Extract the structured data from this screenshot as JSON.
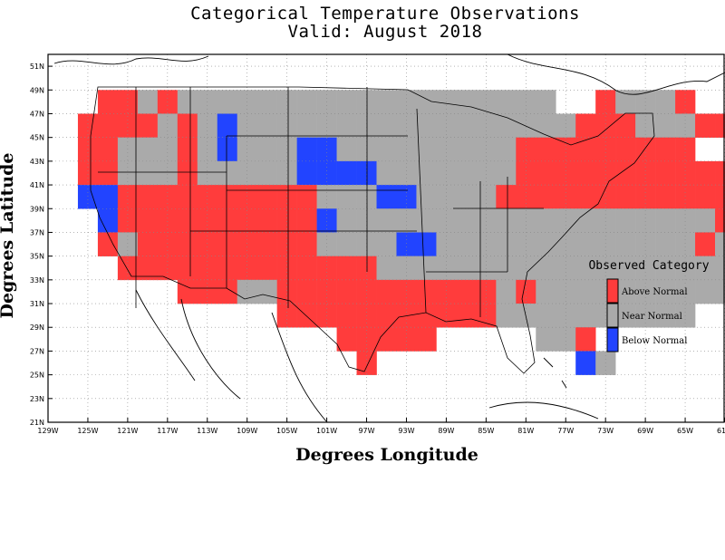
{
  "title": {
    "line1": "Categorical Temperature Observations",
    "line2": "Valid: August 2018"
  },
  "axes": {
    "xlabel": "Degrees Longitude",
    "ylabel": "Degrees Latitude",
    "x_ticks": [
      "129W",
      "125W",
      "121W",
      "117W",
      "113W",
      "109W",
      "105W",
      "101W",
      "97W",
      "93W",
      "89W",
      "85W",
      "81W",
      "77W",
      "73W",
      "69W",
      "65W",
      "61W"
    ],
    "y_ticks": [
      "21N",
      "23N",
      "25N",
      "27N",
      "29N",
      "31N",
      "33N",
      "35N",
      "37N",
      "39N",
      "41N",
      "43N",
      "45N",
      "47N",
      "49N",
      "51N"
    ],
    "xlim": [
      -129,
      -61
    ],
    "ylim": [
      21,
      52
    ],
    "grid": true
  },
  "legend": {
    "title": "Observed Category",
    "placement": "right",
    "items": [
      {
        "label": "Above Normal",
        "color": "#ff3c3c"
      },
      {
        "label": "Near Normal",
        "color": "#aaaaaa"
      },
      {
        "label": "Below Normal",
        "color": "#2244ff"
      }
    ]
  },
  "chart_data": {
    "type": "heatmap",
    "cell_size_degrees": 2,
    "categories": [
      "Above Normal",
      "Near Normal",
      "Below Normal"
    ],
    "rows": [
      {
        "lat": 48,
        "lon_start": -124,
        "cells": "AANANNNNNNNNNNNNNNNNNNN..ANNNA"
      },
      {
        "lat": 46,
        "lon_start": -126,
        "cells": "AAAANANBNNNNNNNNNNNNNNNNNAAANNNAAN........AA"
      },
      {
        "lat": 44,
        "lon_start": -126,
        "cells": "AANNNANBNNNBBNNNNNNNNNAAAAAAAAA...AAAAAAAAAA"
      },
      {
        "lat": 42,
        "lon_start": -126,
        "cells": "AANNNANNNNNBBBBNNNNNNNAAAAAAAAAAAAAAAAAAAAA"
      },
      {
        "lat": 40,
        "lon_start": -126,
        "cells": "BBAAAAAAAAAANNNBBNNNNAAAAAAAAAAAAAAAAAAAAA"
      },
      {
        "lat": 38,
        "lon_start": -124,
        "cells": "BAAAAAAAAAABNNNNNNNNNNNNNNNNNNNAAAAAA"
      },
      {
        "lat": 36,
        "lon_start": -124,
        "cells": "ANAAAAAAAAANNNNBBNNNNNNNNNNNNNANAAAA"
      },
      {
        "lat": 34,
        "lon_start": -122,
        "cells": "AAAAAAAAAAAAANNNNNNNNNNNNNNNNNNAAA"
      },
      {
        "lat": 32,
        "lon_start": -116,
        "cells": "AAANNAAAAAAAAAAANANNNNNNNNNNNA"
      },
      {
        "lat": 30,
        "lon_start": -106,
        "cells": "AAAAAAAAAAANNNNNNNNNN"
      },
      {
        "lat": 28,
        "lon_start": -100,
        "cells": "AAAAA.....NNA"
      },
      {
        "lat": 26,
        "lon_start": -98,
        "cells": "A..........BN"
      }
    ]
  }
}
